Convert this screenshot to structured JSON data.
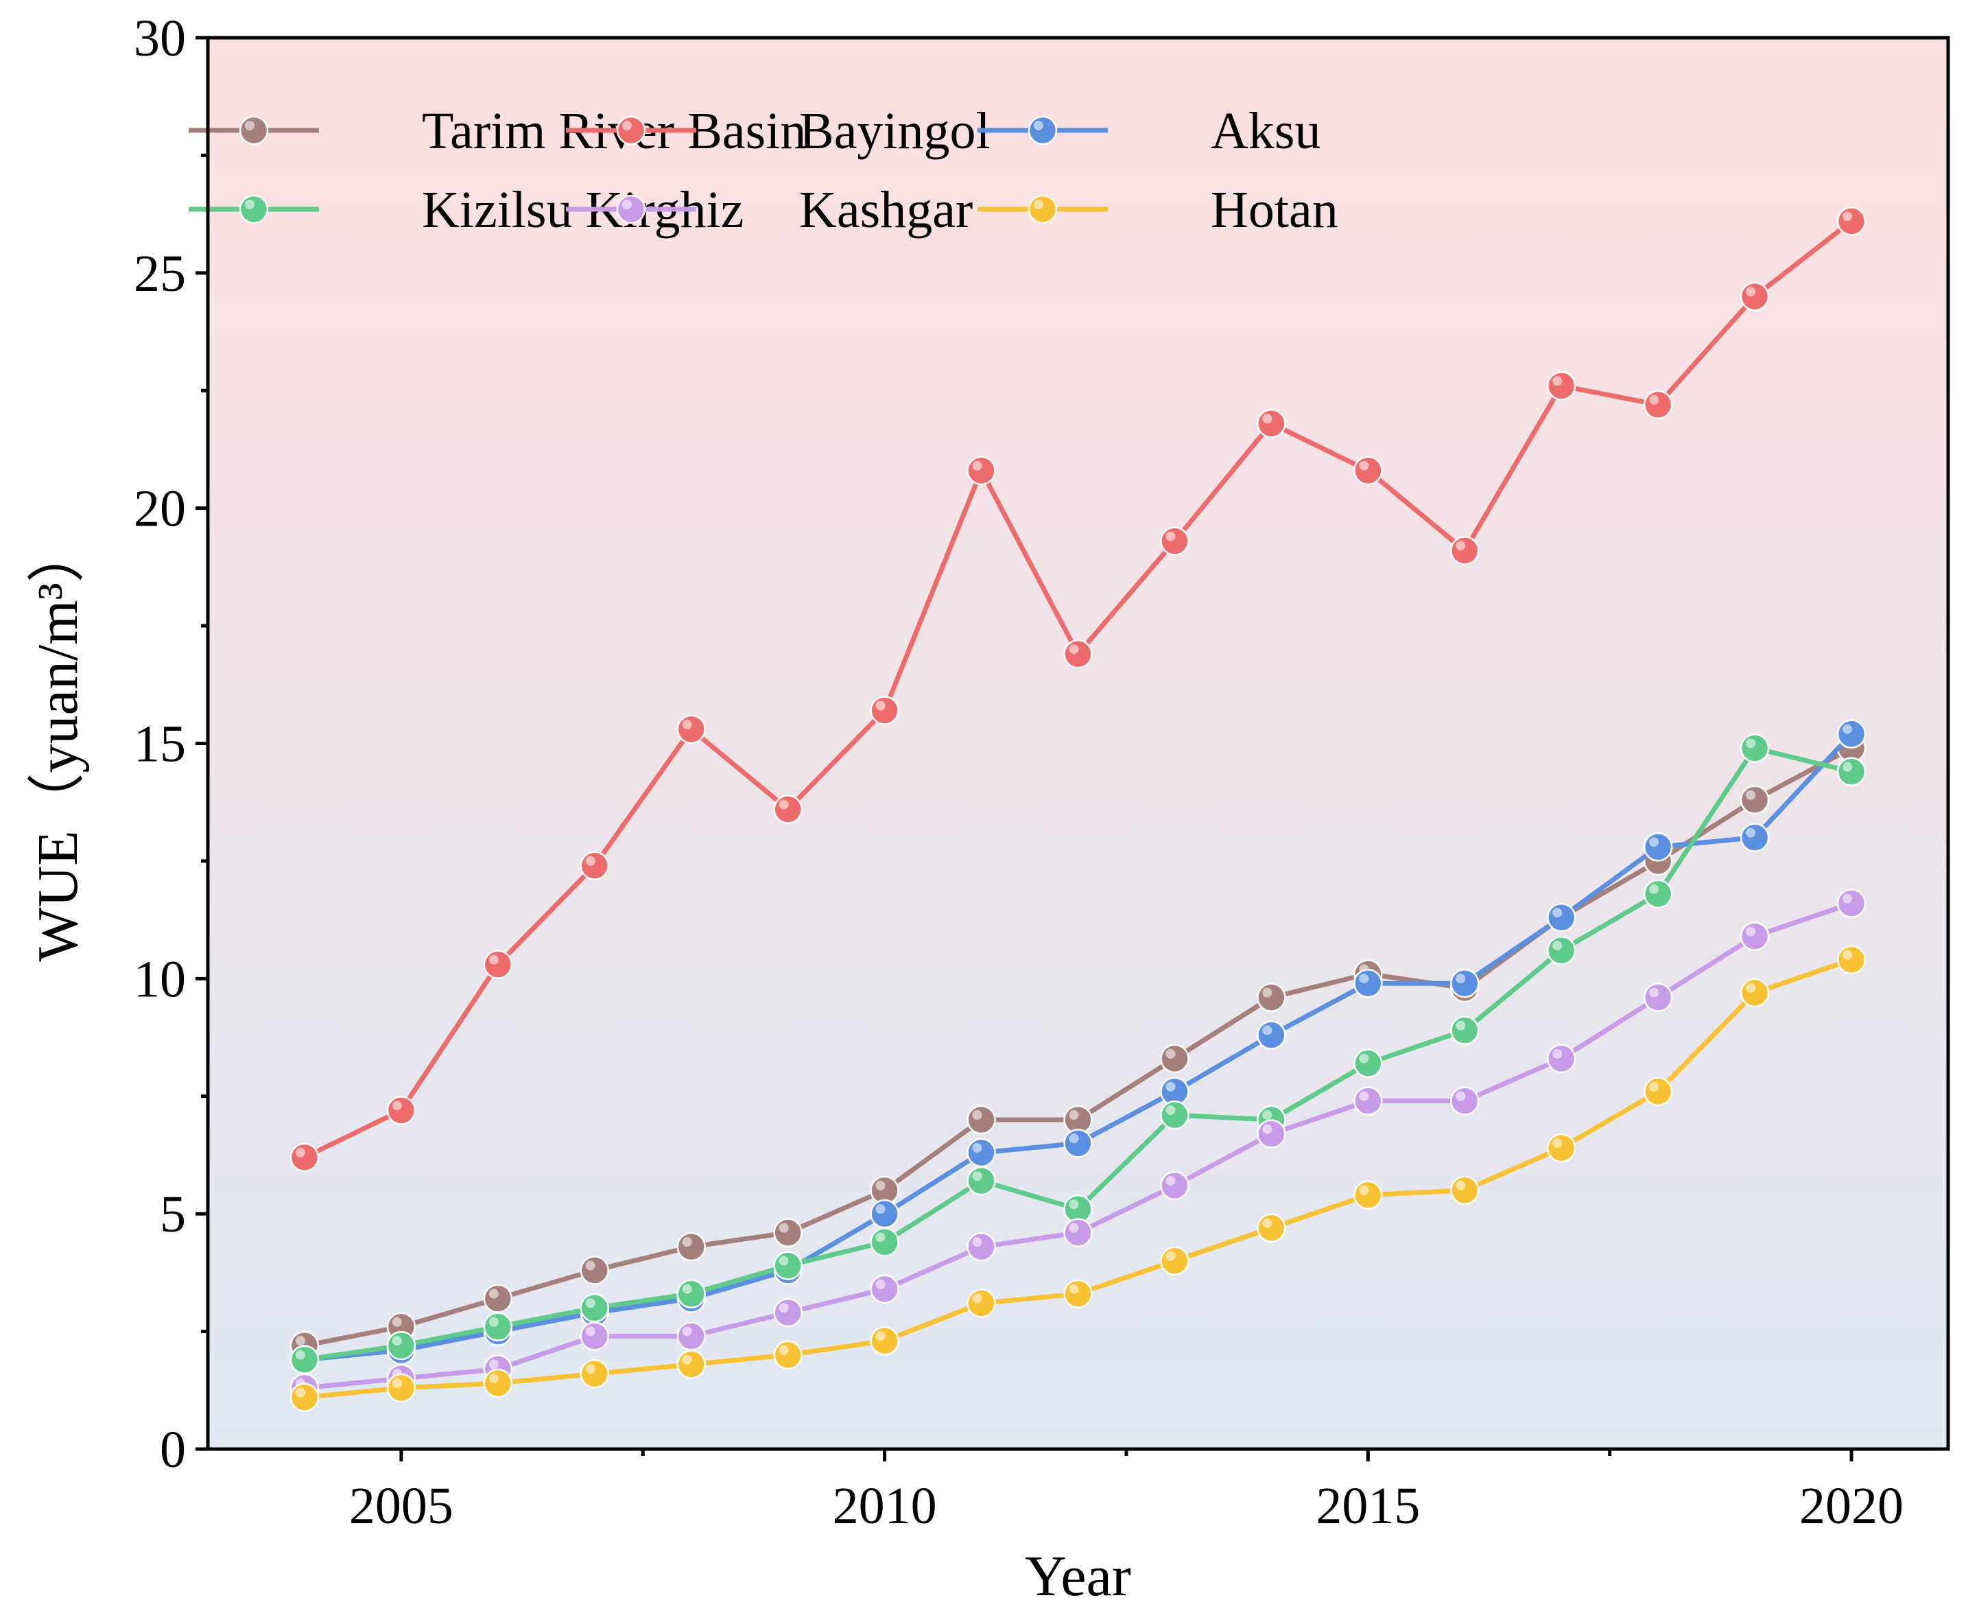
{
  "chart_data": {
    "type": "line",
    "title": "",
    "xlabel": "Year",
    "ylabel": "WUE（yuan/m³）",
    "xlim": [
      2003,
      2021
    ],
    "ylim": [
      0,
      30
    ],
    "x_ticks": [
      2005,
      2010,
      2015,
      2020
    ],
    "y_ticks": [
      0,
      5,
      10,
      15,
      20,
      25,
      30
    ],
    "grid": false,
    "legend_position": "top-left",
    "background_gradient": [
      "#fde0e0",
      "#dfe8f3"
    ],
    "x": [
      2004,
      2005,
      2006,
      2007,
      2008,
      2009,
      2010,
      2011,
      2012,
      2013,
      2014,
      2015,
      2016,
      2017,
      2018,
      2019,
      2020
    ],
    "series": [
      {
        "name": "Tarim River Basin",
        "color": "#a5807b",
        "values": [
          2.2,
          2.6,
          3.2,
          3.8,
          4.3,
          4.6,
          5.5,
          7.0,
          7.0,
          8.3,
          9.6,
          10.1,
          9.8,
          11.3,
          12.5,
          13.8,
          14.9
        ]
      },
      {
        "name": "Bayingol",
        "color": "#ee6b6b",
        "values": [
          6.2,
          7.2,
          10.3,
          12.4,
          15.3,
          13.6,
          15.7,
          20.8,
          16.9,
          19.3,
          21.8,
          20.8,
          19.1,
          22.6,
          22.2,
          24.5,
          26.1
        ]
      },
      {
        "name": "Aksu",
        "color": "#5b8fdf",
        "values": [
          1.9,
          2.1,
          2.5,
          2.9,
          3.2,
          3.8,
          5.0,
          6.3,
          6.5,
          7.6,
          8.8,
          9.9,
          9.9,
          11.3,
          12.8,
          13.0,
          15.2
        ]
      },
      {
        "name": "Kizilsu Kirghiz",
        "color": "#5ecb8a",
        "values": [
          1.9,
          2.2,
          2.6,
          3.0,
          3.3,
          3.9,
          4.4,
          5.7,
          5.1,
          7.1,
          7.0,
          8.2,
          8.9,
          10.6,
          11.8,
          14.9,
          14.4
        ]
      },
      {
        "name": "Kashgar",
        "color": "#c79be8",
        "values": [
          1.3,
          1.5,
          1.7,
          2.4,
          2.4,
          2.9,
          3.4,
          4.3,
          4.6,
          5.6,
          6.7,
          7.4,
          7.4,
          8.3,
          9.6,
          10.9,
          11.6
        ]
      },
      {
        "name": "Hotan",
        "color": "#f8c234",
        "values": [
          1.1,
          1.3,
          1.4,
          1.6,
          1.8,
          2.0,
          2.3,
          3.1,
          3.3,
          4.0,
          4.7,
          5.4,
          5.5,
          6.4,
          7.6,
          9.7,
          10.4
        ]
      }
    ]
  }
}
